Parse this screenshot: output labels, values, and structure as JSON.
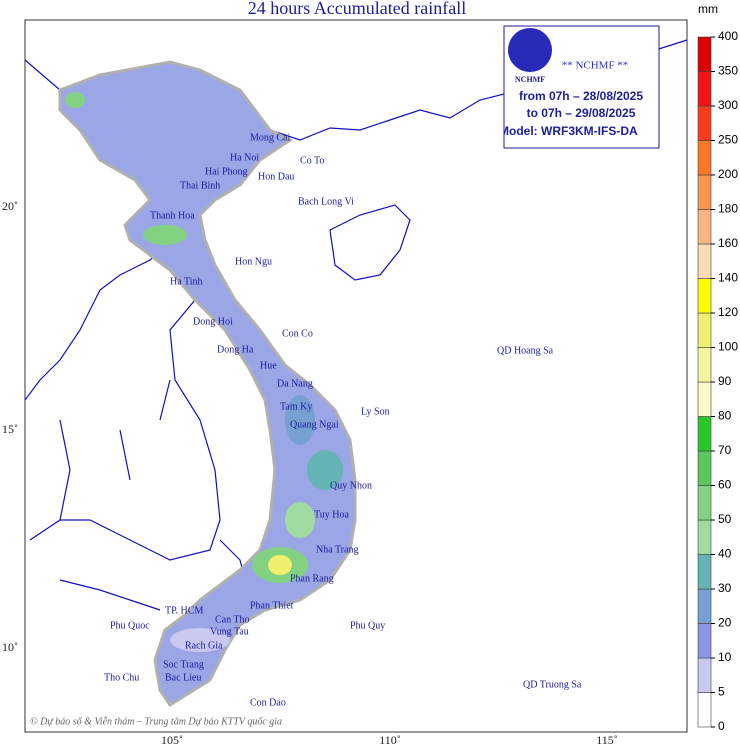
{
  "header": {
    "title": "24 hours Accumulated rainfall"
  },
  "info": {
    "logo": "NCHMF",
    "org": "** NCHMF **",
    "from": "from 07h – 28/08/2025",
    "to": "to 07h – 29/08/2025",
    "model": "Model: WRF3KM-IFS-DA"
  },
  "axes": {
    "lon": [
      "105˚",
      "110˚",
      "115˚"
    ],
    "lat": [
      "20˚",
      "15˚",
      "10˚"
    ]
  },
  "places": [
    "Mong Cai",
    "Ha Noi",
    "Co To",
    "Hai Phong",
    "Hon Dau",
    "Thai Binh",
    "Bach Long Vi",
    "Thanh Hoa",
    "Hon Ngu",
    "Ha Tinh",
    "Dong Hoi",
    "Con Co",
    "Dong Ha",
    "Hue",
    "Da Nang",
    "QD Hoang Sa",
    "Tam Ky",
    "Ly Son",
    "Quang Ngai",
    "Quy Nhon",
    "Tuy Hoa",
    "Nha Trang",
    "Phan Rang",
    "Phan Thiet",
    "TP. HCM",
    "Vung Tau",
    "Phu Quoc",
    "Rach Gia",
    "Can Tho",
    "Soc Trang",
    "Bac Lieu",
    "Tho Chu",
    "Con Dao",
    "QD Truong Sa",
    "Phu Quy"
  ],
  "credit": "© Dự báo số & Viễn thám – Trung tâm Dự báo KTTV quốc gia",
  "legend": {
    "unit": "mm",
    "ticks": [
      0,
      5,
      10,
      20,
      30,
      40,
      50,
      60,
      70,
      80,
      90,
      100,
      120,
      140,
      160,
      180,
      200,
      250,
      300,
      350,
      400
    ],
    "colors": [
      "#ffffff",
      "#c8c8f0",
      "#8c96e6",
      "#78a0d2",
      "#64b4b4",
      "#a0dca0",
      "#82d282",
      "#5ac85a",
      "#28c828",
      "#fafac8",
      "#f5f5a0",
      "#f0f06e",
      "#ffff00",
      "#fadcb4",
      "#fab482",
      "#fa9650",
      "#fa7828",
      "#fa3c1e",
      "#f01414",
      "#dc0000"
    ]
  }
}
